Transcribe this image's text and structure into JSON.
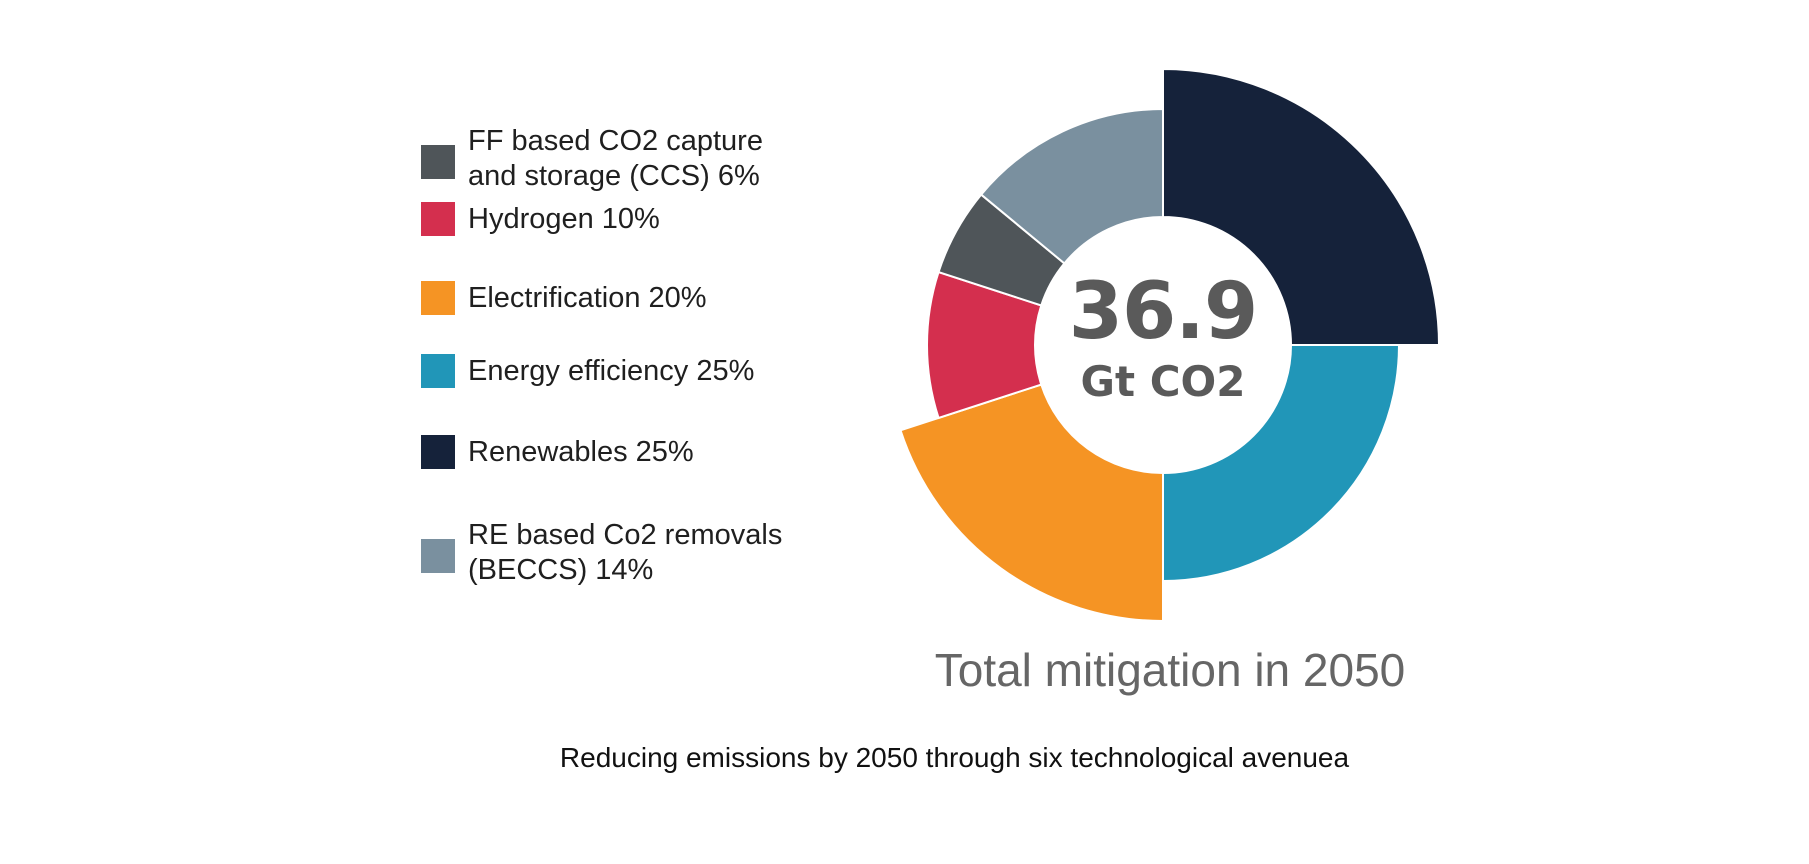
{
  "chart_data": {
    "type": "pie",
    "variant": "donut",
    "center_value": "36.9",
    "center_unit": "Gt CO2",
    "title": "Total mitigation in 2050",
    "caption": "Reducing emissions by 2050 through six technological avenuea",
    "legend_position": "left",
    "slices": [
      {
        "label": "Renewables 25%",
        "value": 25,
        "color": "#15223a",
        "exploded": true
      },
      {
        "label": "Energy efficiency 25%",
        "value": 25,
        "color": "#2196b8",
        "exploded": false
      },
      {
        "label": "Electrification 20%",
        "value": 20,
        "color": "#f59424",
        "exploded": true
      },
      {
        "label": "Hydrogen 10%",
        "value": 10,
        "color": "#d42f4e",
        "exploded": false
      },
      {
        "label": "FF based CO2 capture and storage (CCS) 6%",
        "value": 6,
        "color": "#4f5559",
        "exploded": false
      },
      {
        "label": "RE based Co2 removals (BECCS) 14%",
        "value": 14,
        "color": "#7a909f",
        "exploded": false
      }
    ],
    "legend": [
      {
        "label": "FF based CO2 capture and storage (CCS) 6%",
        "color": "#4f5559"
      },
      {
        "label": "Hydrogen 10%",
        "color": "#d42f4e"
      },
      {
        "label": "Electrification 20%",
        "color": "#f59424"
      },
      {
        "label": "Energy efficiency 25%",
        "color": "#2196b8"
      },
      {
        "label": "Renewables 25%",
        "color": "#15223a"
      },
      {
        "label": "RE based Co2 removals (BECCS) 14%",
        "color": "#7a909f"
      }
    ]
  }
}
